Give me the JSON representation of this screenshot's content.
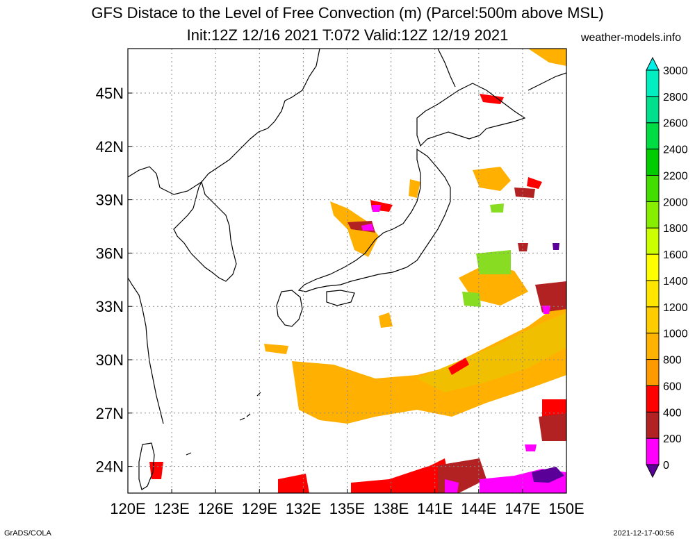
{
  "title": {
    "line1": "GFS Distace to the Level of Free Convection (m) (Parcel:500m above MSL)",
    "line2": "Init:12Z 12/16 2021 T:072 Valid:12Z 12/19 2021"
  },
  "site": "weather-models.info",
  "footer": {
    "left": "GrADS/COLA",
    "right": "2021-12-17-00:56"
  },
  "map": {
    "lon_ticks": [
      "120E",
      "123E",
      "126E",
      "129E",
      "132E",
      "135E",
      "138E",
      "141E",
      "144E",
      "147E",
      "150E"
    ],
    "lat_ticks": [
      "24N",
      "27N",
      "30N",
      "33N",
      "36N",
      "39N",
      "42N",
      "45N"
    ],
    "lon_range": [
      120,
      150
    ],
    "lat_range": [
      22.5,
      47.5
    ]
  },
  "colorbar": {
    "labels": [
      "0",
      "200",
      "400",
      "600",
      "800",
      "1000",
      "1200",
      "1400",
      "1600",
      "1800",
      "2000",
      "2200",
      "2400",
      "2600",
      "2800",
      "3000"
    ],
    "colors": [
      "#5a0099",
      "#ff00ff",
      "#b22222",
      "#ff0000",
      "#ff9900",
      "#ffb300",
      "#ffcc00",
      "#ffe500",
      "#ffff00",
      "#ccff00",
      "#88ee00",
      "#44dd00",
      "#00cc00",
      "#00dd44",
      "#00e08c",
      "#00eec0",
      "#00f0e8"
    ]
  }
}
